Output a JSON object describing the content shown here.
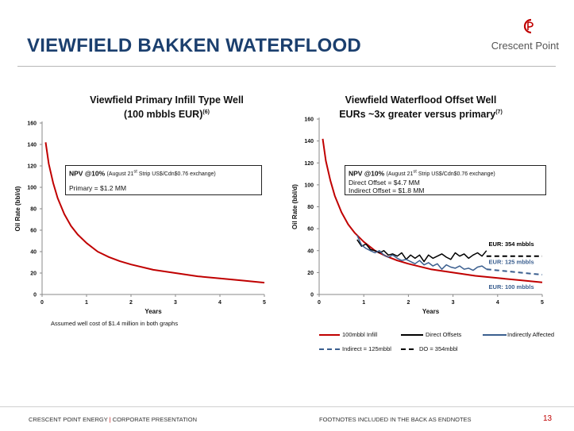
{
  "title": "VIEWFIELD BAKKEN WATERFLOOD",
  "logo": {
    "text": "Crescent Point",
    "mark_color": "#c00000"
  },
  "colors": {
    "infill": "#c00000",
    "direct": "#000000",
    "indirect": "#3b5f8f",
    "title": "#1b3f6e"
  },
  "footer": {
    "company": "CRESCENT POINT ENERGY",
    "separator": "|",
    "section": "CORPORATE PRESENTATION",
    "note": "FOOTNOTES INCLUDED IN THE BACK AS ENDNOTES",
    "page": "13"
  },
  "left_note": "Assumed well cost of $1.4 million in both graphs",
  "chart_data": [
    {
      "type": "line",
      "title_line1": "Viewfield Primary Infill Type Well",
      "title_line2": "(100 mbbls EUR)",
      "title_sup": "(6)",
      "xlabel": "Years",
      "ylabel": "Oil Rate (bbl/d)",
      "xlim": [
        0,
        5
      ],
      "ylim": [
        0,
        160
      ],
      "xticks": [
        "0",
        "1",
        "2",
        "3",
        "4",
        "5"
      ],
      "yticks": [
        "0",
        "20",
        "40",
        "60",
        "80",
        "100",
        "120",
        "140",
        "160"
      ],
      "npv": {
        "label": "NPV @10%",
        "note": "(August 21",
        "note_sup": "st",
        "note_rest": " Strip US$/Cdn$0.76 exchange)",
        "lines": [
          "Primary = $1.2 MM"
        ]
      },
      "series": [
        {
          "key": "infill",
          "x": [
            0.08,
            0.15,
            0.25,
            0.35,
            0.5,
            0.65,
            0.8,
            1.0,
            1.25,
            1.5,
            1.75,
            2.0,
            2.5,
            3.0,
            3.5,
            4.0,
            4.5,
            5.0
          ],
          "y": [
            142,
            122,
            104,
            90,
            75,
            64,
            56,
            48,
            40,
            35,
            31,
            28,
            23,
            20,
            17,
            15,
            13,
            11
          ]
        }
      ]
    },
    {
      "type": "line",
      "title_line1": "Viewfield Waterflood Offset Well",
      "title_line2": "EURs ~3x greater versus primary",
      "title_sup": "(7)",
      "xlabel": "Years",
      "ylabel": "Oil Rate (bbl/d)",
      "xlim": [
        0,
        5
      ],
      "ylim": [
        0,
        160
      ],
      "xticks": [
        "0",
        "1",
        "2",
        "3",
        "4",
        "5"
      ],
      "yticks": [
        "0",
        "20",
        "40",
        "60",
        "80",
        "100",
        "120",
        "140",
        "160"
      ],
      "npv": {
        "label": "NPV @10%",
        "note": "(August 21",
        "note_sup": "st",
        "note_rest": " Strip US$/Cdn$0.76 exchange)",
        "lines": [
          "Direct Offset = $4.7 MM",
          "Indirect Offset = $1.8 MM"
        ]
      },
      "annotations": [
        "EUR: 354 mbbls",
        "EUR: 125 mbbls",
        "EUR: 100 mbbls"
      ],
      "series": [
        {
          "key": "infill",
          "x": [
            0.08,
            0.15,
            0.25,
            0.35,
            0.5,
            0.65,
            0.8,
            1.0,
            1.25,
            1.5,
            1.75,
            2.0,
            2.5,
            3.0,
            3.5,
            4.0,
            4.5,
            5.0
          ],
          "y": [
            142,
            122,
            104,
            90,
            75,
            64,
            56,
            48,
            40,
            35,
            31,
            28,
            23,
            20,
            17,
            15,
            13,
            11
          ]
        },
        {
          "key": "direct",
          "x": [
            0.85,
            0.95,
            1.05,
            1.15,
            1.25,
            1.35,
            1.45,
            1.55,
            1.65,
            1.75,
            1.85,
            1.95,
            2.05,
            2.15,
            2.25,
            2.35,
            2.45,
            2.55,
            2.65,
            2.75,
            2.85,
            2.95,
            3.05,
            3.15,
            3.25,
            3.35,
            3.45,
            3.55,
            3.65,
            3.75
          ],
          "y": [
            50,
            44,
            46,
            41,
            40,
            38,
            40,
            36,
            37,
            35,
            38,
            32,
            36,
            33,
            36,
            30,
            36,
            33,
            35,
            37,
            34,
            32,
            38,
            35,
            37,
            33,
            36,
            38,
            35,
            40
          ]
        },
        {
          "key": "indirect",
          "x": [
            0.85,
            0.95,
            1.05,
            1.15,
            1.25,
            1.35,
            1.45,
            1.55,
            1.65,
            1.75,
            1.85,
            1.95,
            2.05,
            2.15,
            2.25,
            2.35,
            2.45,
            2.55,
            2.65,
            2.75,
            2.85,
            2.95,
            3.05,
            3.15,
            3.25,
            3.35,
            3.45,
            3.55,
            3.65,
            3.75
          ],
          "y": [
            54,
            45,
            42,
            40,
            38,
            40,
            36,
            34,
            36,
            33,
            31,
            32,
            30,
            28,
            31,
            27,
            29,
            26,
            28,
            23,
            27,
            25,
            24,
            26,
            23,
            24,
            22,
            25,
            26,
            23
          ]
        },
        {
          "key": "indirect_fc",
          "x": [
            3.75,
            4.0,
            4.5,
            5.0
          ],
          "y": [
            23,
            22,
            20,
            18
          ]
        },
        {
          "key": "direct_fc",
          "x": [
            3.75,
            4.0,
            4.5,
            5.0
          ],
          "y": [
            35,
            35,
            35,
            35
          ]
        }
      ],
      "legend": [
        "100mbbl Infill",
        "Direct Offsets",
        "Indirectly Affected",
        "Indirect = 125mbbl",
        "DO = 354mbbl"
      ]
    }
  ]
}
